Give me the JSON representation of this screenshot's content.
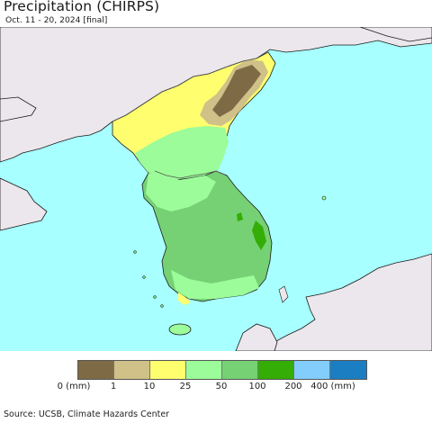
{
  "header": {
    "title": "Precipitation (CHIRPS)",
    "subtitle": "Oct. 11 - 20, 2024 [final]"
  },
  "colors": {
    "ocean": "#a7ffff",
    "foreign_land": "#ece7ec",
    "coast_line": "#1a1a1a",
    "border_line": "#555555"
  },
  "legend": {
    "swatches": [
      {
        "range": "0-1",
        "color": "#7f6a46"
      },
      {
        "range": "1-10",
        "color": "#cfc188"
      },
      {
        "range": "10-25",
        "color": "#fefe6f"
      },
      {
        "range": "25-50",
        "color": "#9cfc9a"
      },
      {
        "range": "50-100",
        "color": "#76d175"
      },
      {
        "range": "100-200",
        "color": "#34ad06"
      },
      {
        "range": "200-400",
        "color": "#82cdfc"
      },
      {
        "range": "400+",
        "color": "#1c7ec2"
      }
    ],
    "labels": [
      "0 (mm)",
      "1",
      "10",
      "25",
      "50",
      "100",
      "200",
      "400 (mm)"
    ]
  },
  "footer": {
    "source": "Source: UCSB, Climate Hazards Center"
  }
}
